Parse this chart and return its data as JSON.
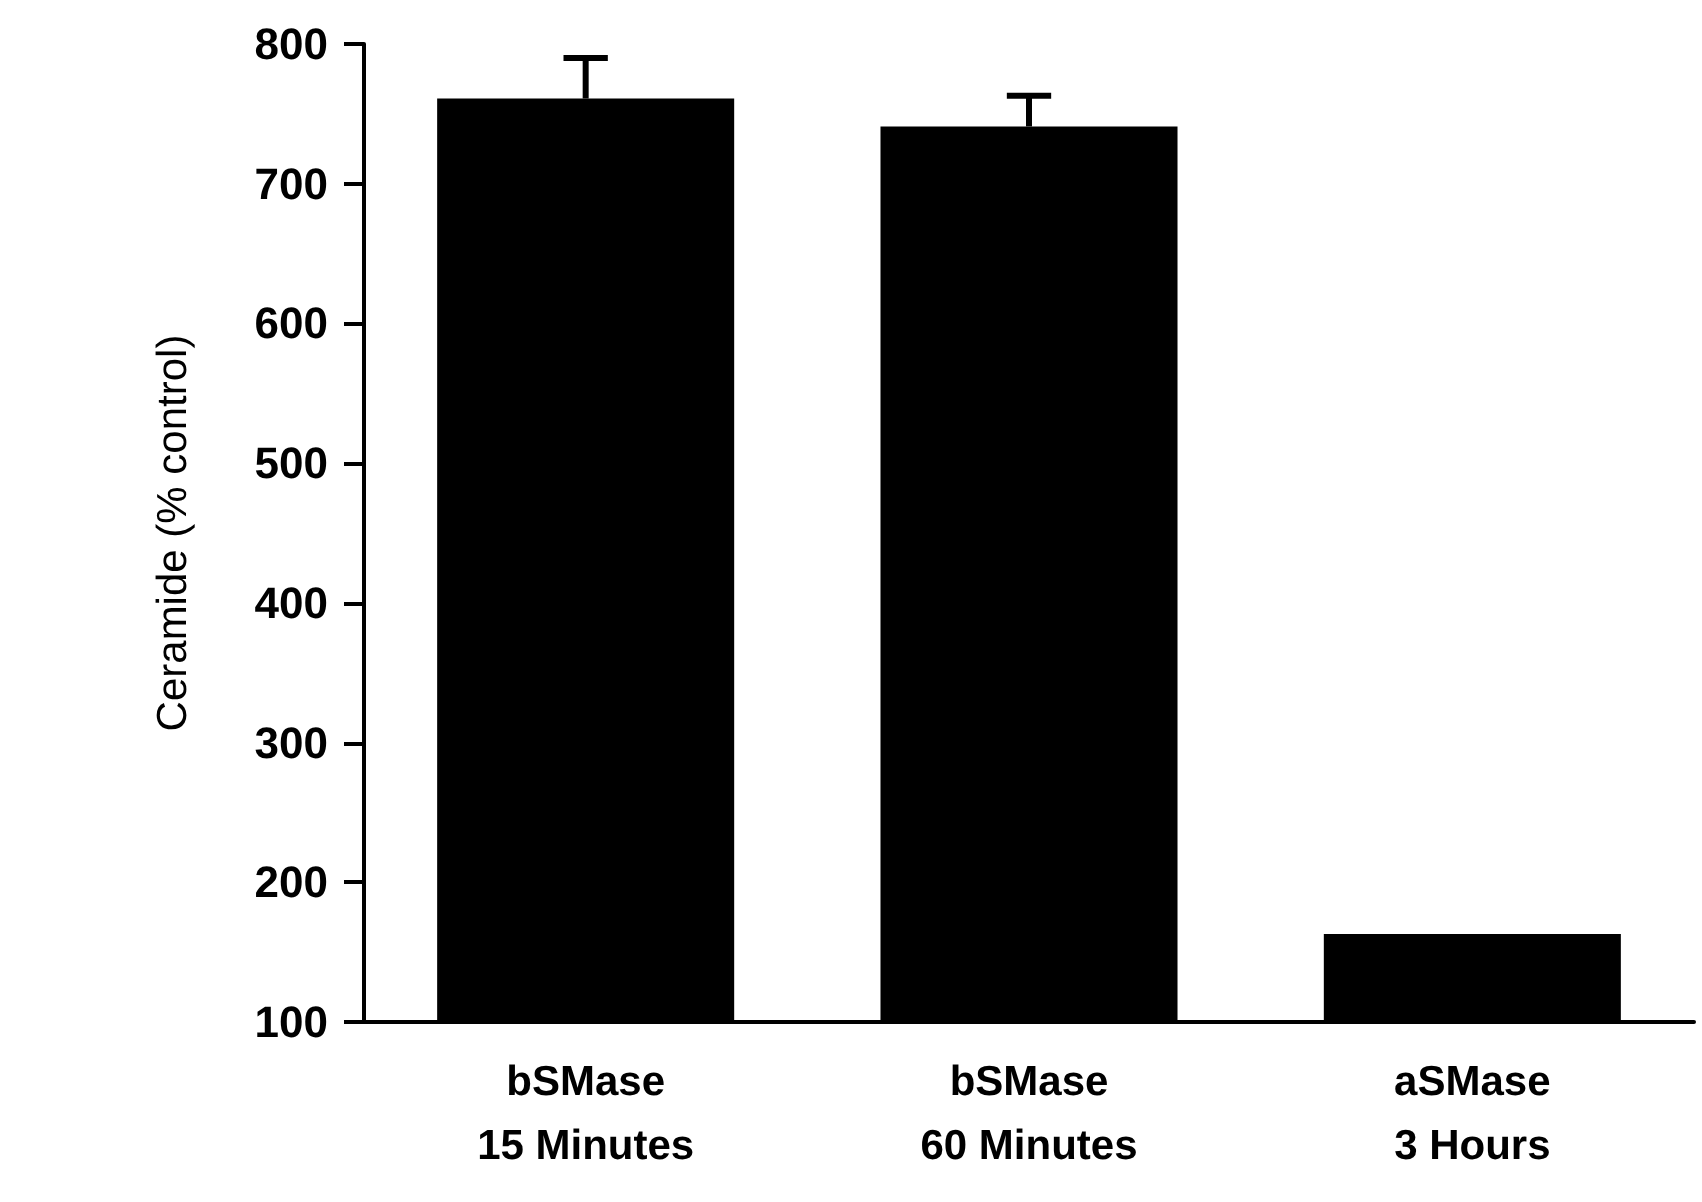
{
  "chart_data": {
    "type": "bar",
    "ylabel": "Ceramide (% control)",
    "categories": [
      "bSMase\n15 Minutes",
      "bSMase\n60 Minutes",
      "aSMase\n3 Hours"
    ],
    "values": [
      761,
      741,
      163
    ],
    "color": "#000000",
    "errors": [
      [
        761,
        790
      ],
      [
        741,
        763
      ],
      null
    ],
    "ylim": [
      100,
      800
    ],
    "yticks": [
      100,
      200,
      300,
      400,
      500,
      600,
      700,
      800
    ],
    "grid": false
  }
}
